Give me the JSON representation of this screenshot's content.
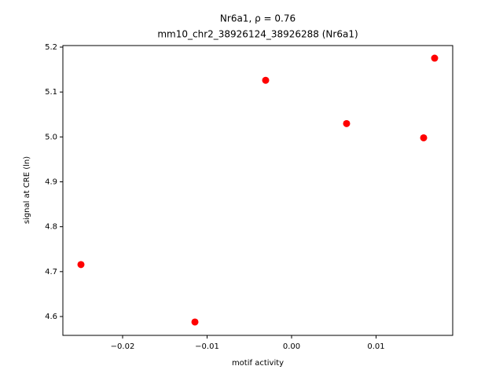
{
  "chart_data": {
    "type": "scatter",
    "title": [
      "Nr6a1, ρ = 0.76",
      "mm10_chr2_38926124_38926288 (Nr6a1)"
    ],
    "x_label": "motif activity",
    "y_label": "signal at CRE (ln)",
    "x": [
      -0.02493,
      -0.01144,
      -0.00307,
      0.00651,
      0.01563,
      0.01693
    ],
    "values": [
      4.7157,
      4.5878,
      5.1262,
      5.0297,
      4.998,
      5.1755
    ],
    "color": "#ff0000",
    "xlim": [
      -0.02707,
      0.01907
    ],
    "ylim": [
      4.558,
      5.2035
    ],
    "xticks": [
      {
        "value": -0.02,
        "label": "−0.02"
      },
      {
        "value": -0.01,
        "label": "−0.01"
      },
      {
        "value": 0,
        "label": "0.00"
      },
      0.01
    ],
    "yticks": [
      4.6,
      4.7,
      4.8,
      4.9,
      {
        "value": 5,
        "label": "5.0"
      },
      5.1,
      5.2
    ]
  }
}
